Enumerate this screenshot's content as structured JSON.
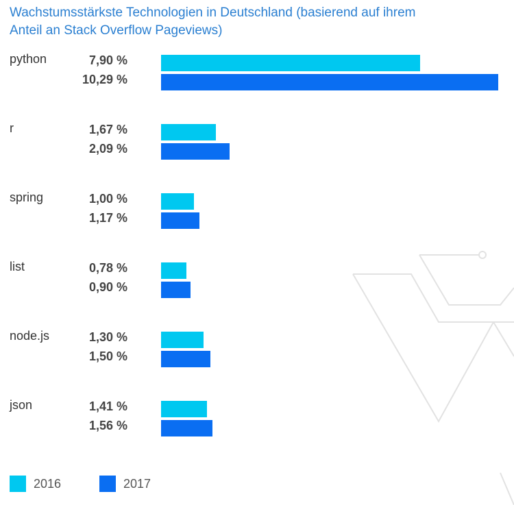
{
  "chart_data": {
    "type": "bar",
    "orientation": "horizontal",
    "title": "Wachstumsstärkste Technologien in Deutschland (basierend auf ihrem Anteil an Stack Overflow Pageviews)",
    "categories": [
      "python",
      "r",
      "spring",
      "list",
      "node.js",
      "json"
    ],
    "series": [
      {
        "name": "2016",
        "color": "#00c8f0",
        "values": [
          7.9,
          1.67,
          1.0,
          0.78,
          1.3,
          1.41
        ],
        "value_labels": [
          "7,90 %",
          "1,67 %",
          "1,00 %",
          "0,78 %",
          "1,30 %",
          "1,41 %"
        ]
      },
      {
        "name": "2017",
        "color": "#0a6ef2",
        "values": [
          10.29,
          2.09,
          1.17,
          0.9,
          1.5,
          1.56
        ],
        "value_labels": [
          "10,29 %",
          "2,09 %",
          "1,17 %",
          "0,90 %",
          "1,50 %",
          "1,56 %"
        ]
      }
    ],
    "xlim": [
      0,
      10.29
    ],
    "unit": "%",
    "grid": false,
    "legend_position": "bottom-left"
  }
}
